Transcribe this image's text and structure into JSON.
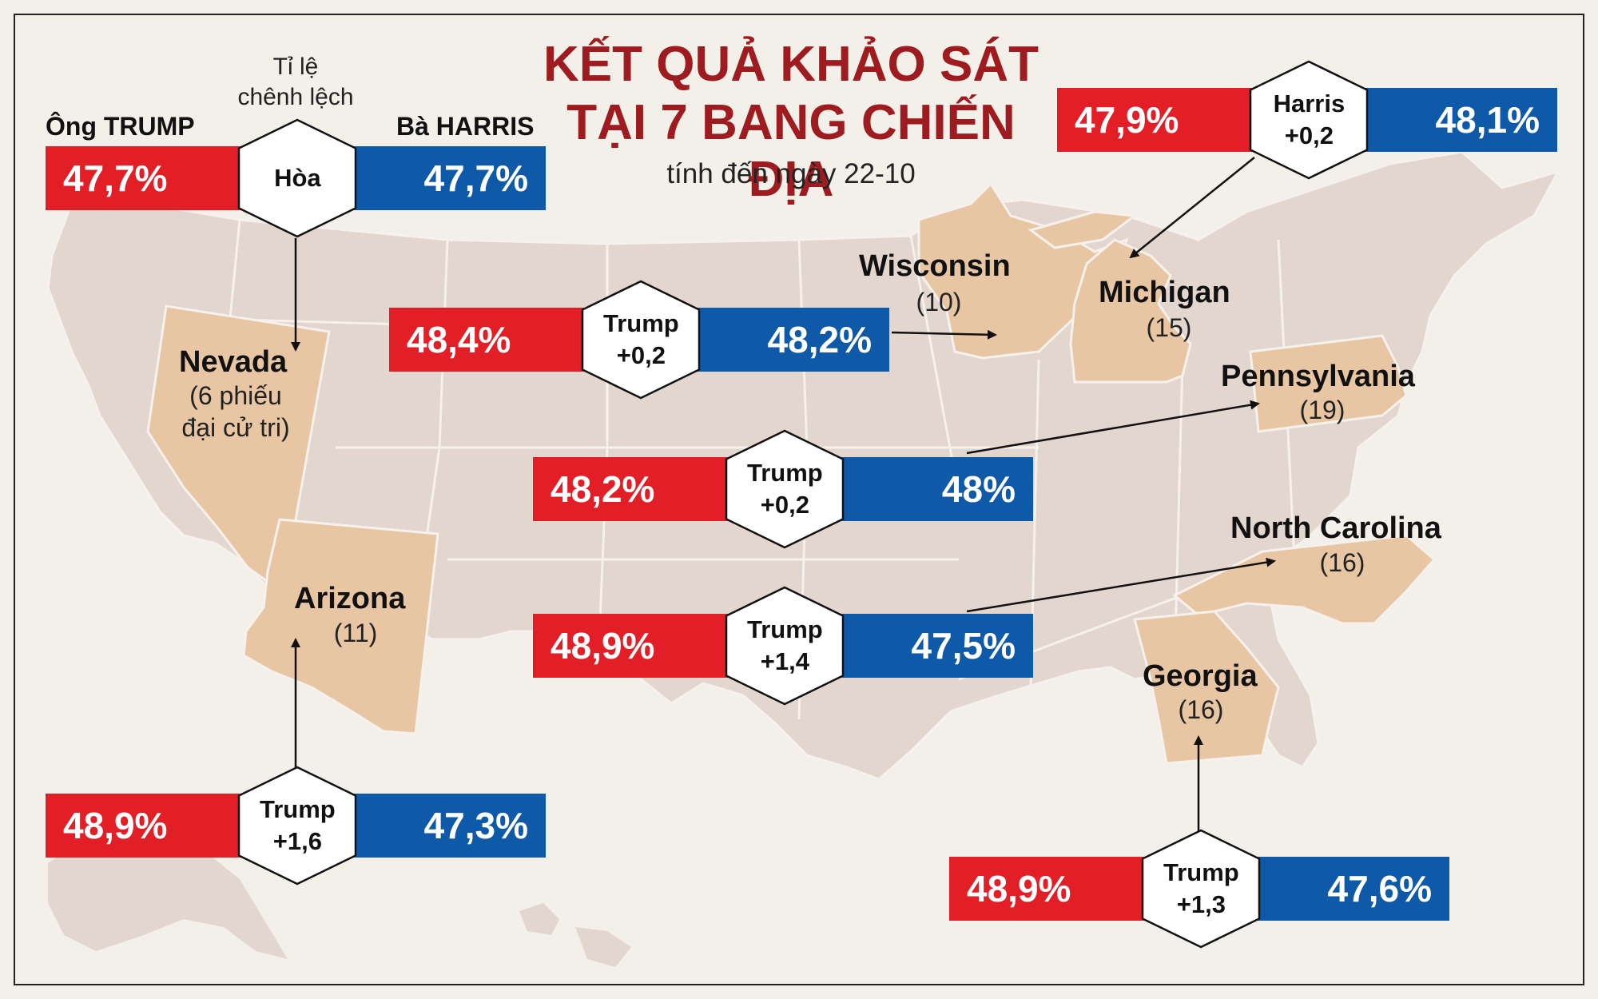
{
  "title": {
    "line1": "KẾT QUẢ KHẢO SÁT",
    "line2": "TẠI 7 BANG CHIẾN ĐỊA"
  },
  "subtitle": "tính đến ngày 22-10",
  "legend": {
    "trump_label": "Ông TRUMP",
    "harris_label": "Bà HARRIS",
    "margin_label_line1": "Tỉ lệ",
    "margin_label_line2": "chênh lệch"
  },
  "colors": {
    "trump": "#e21f26",
    "harris": "#0f5aa8",
    "title": "#9e1b1f",
    "swing_state": "#e8c6a4",
    "other_state": "#e2d6ce",
    "background": "#f3efe9"
  },
  "states": [
    {
      "id": "nevada",
      "name": "Nevada",
      "ev_line1": "(6 phiếu",
      "ev_line2": "đại cử tri)",
      "trump": "47,7%",
      "harris": "47,7%",
      "margin_line1": "Hòa",
      "margin_line2": ""
    },
    {
      "id": "arizona",
      "name": "Arizona",
      "ev": "(11)",
      "trump": "48,9%",
      "harris": "47,3%",
      "margin_line1": "Trump",
      "margin_line2": "+1,6"
    },
    {
      "id": "wisconsin",
      "name": "Wisconsin",
      "ev": "(10)",
      "trump": "48,4%",
      "harris": "48,2%",
      "margin_line1": "Trump",
      "margin_line2": "+0,2"
    },
    {
      "id": "michigan",
      "name": "Michigan",
      "ev": "(15)",
      "trump": "47,9%",
      "harris": "48,1%",
      "margin_line1": "Harris",
      "margin_line2": "+0,2"
    },
    {
      "id": "pennsylvania",
      "name": "Pennsylvania",
      "ev": "(19)",
      "trump": "48,2%",
      "harris": "48%",
      "margin_line1": "Trump",
      "margin_line2": "+0,2"
    },
    {
      "id": "north_carolina",
      "name": "North Carolina",
      "ev": "(16)",
      "trump": "48,9%",
      "harris": "47,5%",
      "margin_line1": "Trump",
      "margin_line2": "+1,4"
    },
    {
      "id": "georgia",
      "name": "Georgia",
      "ev": "(16)",
      "trump": "48,9%",
      "harris": "47,6%",
      "margin_line1": "Trump",
      "margin_line2": "+1,3"
    }
  ]
}
